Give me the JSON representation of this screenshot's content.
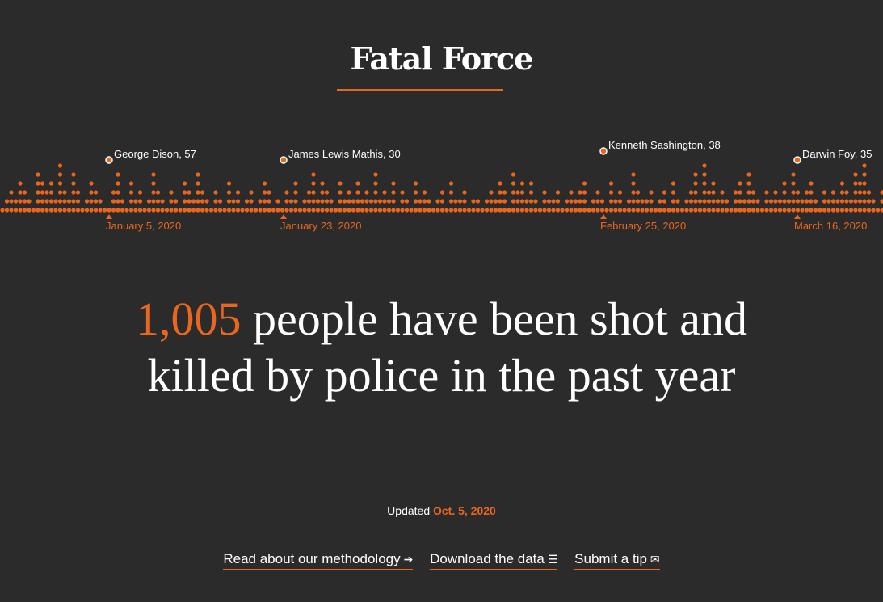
{
  "header": {
    "title": "Fatal Force"
  },
  "timeline": {
    "highlights": [
      {
        "name": "George Dison, 57",
        "date": "January 5, 2020"
      },
      {
        "name": "James Lewis Mathis, 30",
        "date": "January 23, 2020"
      },
      {
        "name": "Kenneth Sashington, 38",
        "date": "February 25, 2020"
      },
      {
        "name": "Darwin Foy, 35",
        "date": "March 16, 2020"
      }
    ],
    "daily_counts": [
      1,
      2,
      3,
      2,
      4,
      3,
      2,
      1,
      5,
      4,
      3,
      4,
      2,
      6,
      3,
      2,
      5,
      3,
      1,
      2,
      4,
      3,
      2,
      1,
      1,
      3,
      5,
      2,
      1,
      4,
      2,
      3,
      1,
      2,
      5,
      3,
      2,
      1,
      3,
      2,
      1,
      4,
      3,
      2,
      5,
      3,
      2,
      1,
      3,
      2,
      1,
      4,
      2,
      3,
      1,
      2,
      3,
      1,
      2,
      4,
      3,
      1,
      2,
      1,
      3,
      2,
      4,
      1,
      2,
      3,
      5,
      2,
      4,
      3,
      2,
      1,
      4,
      2,
      3,
      2,
      4,
      2,
      3,
      2,
      5,
      2,
      3,
      2,
      4,
      1,
      3,
      2,
      1,
      4,
      2,
      3,
      2,
      1,
      2,
      3,
      1,
      4,
      2,
      2,
      3,
      1,
      2,
      2,
      1,
      2,
      3,
      2,
      4,
      3,
      1,
      5,
      3,
      4,
      2,
      4,
      2,
      1,
      3,
      2,
      2,
      3,
      1,
      2,
      3,
      2,
      3,
      4,
      1,
      2,
      3,
      2,
      1,
      4,
      2,
      3,
      1,
      2,
      5,
      3,
      2,
      2,
      3,
      1,
      2,
      3,
      1,
      4,
      2,
      1,
      2,
      3,
      5,
      2,
      6,
      3,
      4,
      2,
      3,
      2,
      1,
      3,
      4,
      2,
      5,
      3,
      2,
      1,
      3,
      2,
      3,
      2,
      4,
      2,
      5,
      3,
      2,
      3,
      4,
      2,
      1,
      3,
      2,
      3,
      2,
      4,
      3,
      2,
      5,
      4,
      6,
      3,
      2,
      1,
      3,
      2,
      4,
      3,
      2,
      1,
      2,
      3,
      4,
      2,
      3,
      1,
      2,
      3,
      4,
      2
    ],
    "colors": {
      "dot": "#e8661e",
      "highlight_ring": "#ffffff"
    }
  },
  "headline": {
    "count": "1,005",
    "text": " people have been shot and killed by police in the past year"
  },
  "updated": {
    "label": "Updated ",
    "date": "Oct. 5, 2020"
  },
  "links": {
    "methodology": "Read about our methodology",
    "download": "Download the data",
    "tip": "Submit a tip"
  },
  "colors": {
    "accent": "#e8661e",
    "background": "#2b2b2b",
    "text": "#ffffff"
  }
}
